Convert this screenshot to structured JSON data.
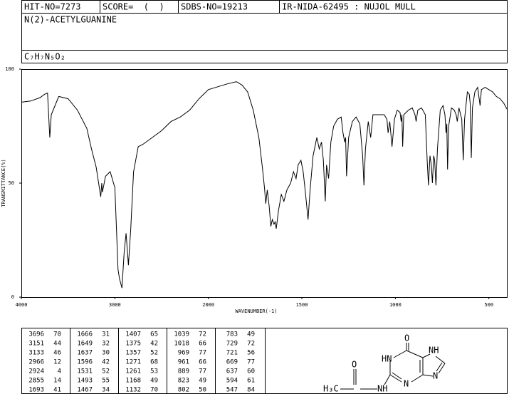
{
  "header": {
    "hit_no": "HIT-NO=7273",
    "score": "SCORE=  (  )",
    "sdbs_no": "SDBS-NO=19213",
    "ir": "IR-NIDA-62495 : NUJOL MULL",
    "name": "N(2)-ACETYLGUANINE",
    "formula": "C₇H₇N₅O₂"
  },
  "chart_data": {
    "type": "line",
    "xlabel": "WAVENUMBER(-1)",
    "ylabel": "TRANSMITTANCE(%)",
    "xlim": [
      4000,
      400
    ],
    "xscale_break": 2000,
    "xscale_expand": 2,
    "ylim": [
      0,
      100
    ],
    "yticks": [
      0,
      50,
      100
    ],
    "xticks": [
      4000,
      3000,
      2000,
      1500,
      1000,
      500
    ],
    "x": [
      4000,
      3900,
      3800,
      3750,
      3720,
      3696,
      3680,
      3600,
      3500,
      3400,
      3300,
      3250,
      3200,
      3151,
      3140,
      3133,
      3100,
      3050,
      3000,
      2966,
      2950,
      2924,
      2900,
      2880,
      2855,
      2830,
      2800,
      2750,
      2700,
      2600,
      2500,
      2400,
      2300,
      2200,
      2100,
      2000,
      1900,
      1850,
      1820,
      1790,
      1760,
      1730,
      1710,
      1700,
      1693,
      1685,
      1675,
      1666,
      1658,
      1649,
      1643,
      1637,
      1625,
      1610,
      1596,
      1580,
      1560,
      1545,
      1531,
      1520,
      1505,
      1493,
      1480,
      1467,
      1455,
      1440,
      1420,
      1407,
      1395,
      1385,
      1375,
      1368,
      1357,
      1345,
      1330,
      1310,
      1290,
      1280,
      1271,
      1266,
      1261,
      1250,
      1230,
      1210,
      1190,
      1175,
      1168,
      1160,
      1145,
      1132,
      1120,
      1100,
      1080,
      1060,
      1045,
      1039,
      1030,
      1018,
      1005,
      990,
      975,
      969,
      965,
      961,
      955,
      930,
      910,
      895,
      889,
      880,
      860,
      840,
      830,
      823,
      815,
      808,
      802,
      795,
      790,
      783,
      775,
      760,
      745,
      735,
      729,
      725,
      721,
      715,
      700,
      685,
      675,
      669,
      660,
      645,
      637,
      630,
      615,
      605,
      600,
      594,
      588,
      575,
      560,
      547,
      540,
      520,
      500,
      480,
      460,
      440,
      420,
      400
    ],
    "series": [
      {
        "name": "spectrum",
        "color": "#000000",
        "values": [
          85.5,
          86,
          87.5,
          89,
          89.5,
          70,
          80,
          88,
          87,
          82,
          74,
          65,
          57,
          44,
          50,
          46,
          53,
          55,
          48,
          12,
          8,
          4,
          20,
          28,
          14,
          30,
          55,
          66,
          67,
          70,
          73,
          77,
          79,
          82,
          87,
          91,
          93.5,
          94.5,
          93,
          90,
          82,
          70,
          56,
          48,
          41,
          47,
          40,
          31,
          34,
          32,
          33,
          30,
          38,
          45,
          42,
          47,
          50,
          55,
          52,
          58,
          60,
          55,
          45,
          34,
          48,
          62,
          70,
          65,
          68,
          60,
          42,
          58,
          52,
          68,
          75,
          78,
          79,
          72,
          68,
          70,
          53,
          70,
          77,
          79,
          76,
          62,
          49,
          65,
          77,
          70,
          80,
          80,
          80,
          80,
          78,
          72,
          77,
          66,
          78,
          82,
          81,
          77,
          80,
          66,
          80,
          82,
          83,
          80,
          77,
          82,
          83,
          80,
          60,
          49,
          62,
          58,
          50,
          62,
          60,
          49,
          65,
          82,
          84,
          80,
          72,
          76,
          56,
          75,
          83,
          82,
          80,
          77,
          83,
          78,
          60,
          78,
          90,
          89,
          85,
          61,
          83,
          90,
          92,
          84,
          91,
          92,
          91,
          90,
          88,
          87,
          85,
          82
        ]
      }
    ]
  },
  "peak_table": [
    [
      [
        3696,
        70
      ],
      [
        3151,
        44
      ],
      [
        3133,
        46
      ],
      [
        2966,
        12
      ],
      [
        2924,
        4
      ],
      [
        2855,
        14
      ],
      [
        1693,
        41
      ]
    ],
    [
      [
        1666,
        31
      ],
      [
        1649,
        32
      ],
      [
        1637,
        30
      ],
      [
        1596,
        42
      ],
      [
        1531,
        52
      ],
      [
        1493,
        55
      ],
      [
        1467,
        34
      ]
    ],
    [
      [
        1407,
        65
      ],
      [
        1375,
        42
      ],
      [
        1357,
        52
      ],
      [
        1271,
        68
      ],
      [
        1261,
        53
      ],
      [
        1168,
        49
      ],
      [
        1132,
        70
      ]
    ],
    [
      [
        1039,
        72
      ],
      [
        1018,
        66
      ],
      [
        969,
        77
      ],
      [
        961,
        66
      ],
      [
        889,
        77
      ],
      [
        823,
        49
      ],
      [
        802,
        50
      ]
    ],
    [
      [
        783,
        49
      ],
      [
        729,
        72
      ],
      [
        721,
        56
      ],
      [
        669,
        77
      ],
      [
        637,
        60
      ],
      [
        594,
        61
      ],
      [
        547,
        84
      ]
    ]
  ],
  "structure": {
    "atoms": [
      "O",
      "HN",
      "N",
      "NH",
      "N",
      "O",
      "NH",
      "H₃C"
    ]
  }
}
